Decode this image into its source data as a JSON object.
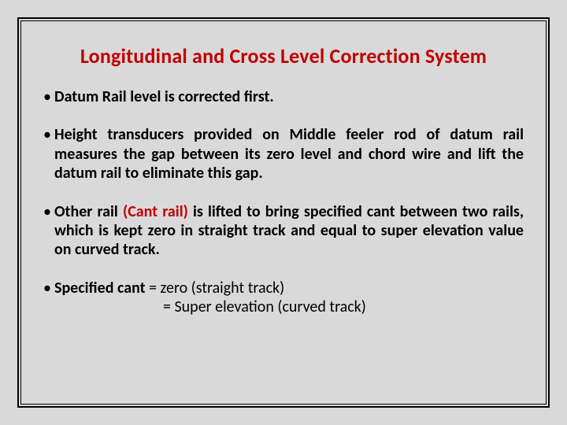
{
  "colors": {
    "background": "#d9d9d9",
    "title": "#c00000",
    "accent_red": "#c00000",
    "text": "#000000",
    "border": "#000000"
  },
  "typography": {
    "family": "Calibri",
    "title_fontsize": 26,
    "body_fontsize": 20,
    "title_weight": 700,
    "body_weight": 700
  },
  "title": "Longitudinal and Cross Level Correction System",
  "bullets": {
    "b1": "Datum Rail level is corrected first.",
    "b2": "Height transducers provided on Middle feeler rod of datum rail measures the gap between its zero level and chord wire and  lift the datum rail to eliminate this gap.",
    "b3_pre": "Other rail ",
    "b3_red": "(Cant rail)",
    "b3_post": " is lifted to bring specified cant between two rails, which is kept zero in straight track and equal to super elevation value on curved track.",
    "b4_lead": "Specified cant",
    "b4_eq1": "  = zero (straight track)",
    "b4_eq2": "= Super elevation (curved track)"
  }
}
